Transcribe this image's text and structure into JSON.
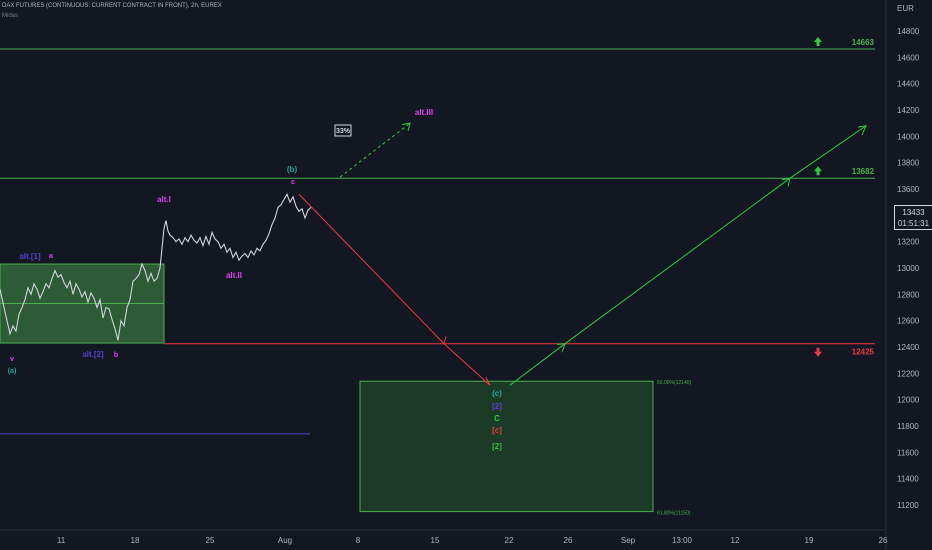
{
  "header": {
    "title": "DAX FUTURES (CONTINUOUS: CURRENT CONTRACT IN FRONT), 2h, EUREX",
    "author": "Midas"
  },
  "colors": {
    "bg": "#131722",
    "green": "#4caf50",
    "bright_green": "#2ecc40",
    "red": "#f23645",
    "magenta": "#e040fb",
    "purple": "#5c3fd1",
    "teal": "#26a69a",
    "white": "#d1d4dc"
  },
  "chart_data": {
    "type": "line",
    "y_axis_label": "EUR",
    "y_ticks": [
      11200,
      11400,
      11600,
      11800,
      12000,
      12200,
      12400,
      12600,
      12800,
      13000,
      13200,
      13400,
      13600,
      13800,
      14000,
      14200,
      14400,
      14600,
      14800
    ],
    "ylim": [
      11080,
      14960
    ],
    "x_ticks": [
      "11",
      "18",
      "25",
      "Aug",
      "8",
      "15",
      "22",
      "26",
      "Sep",
      "13:00",
      "12",
      "19",
      "26"
    ],
    "current_price": "13433",
    "countdown": "01:51:31",
    "levels": [
      {
        "label": "14663",
        "value": 14663,
        "color": "#4caf50",
        "arrow": "up"
      },
      {
        "label": "13682",
        "value": 13682,
        "color": "#4caf50",
        "arrow": "up"
      },
      {
        "label": "12425",
        "value": 12425,
        "color": "#f23645",
        "arrow": "down"
      }
    ],
    "fib_box": {
      "top_label": "50.00%(12140)",
      "bottom_label": "61.80%(11150)",
      "top": 12140,
      "bottom": 11150
    },
    "range_box": {
      "top": 13030,
      "bottom": 12430
    },
    "purple_line": 11740,
    "annotations": [
      {
        "text": "33%",
        "boxed": true
      },
      {
        "text": "alt.III",
        "color": "#e040fb"
      },
      {
        "text": "(b)",
        "color": "#26a69a"
      },
      {
        "text": "c",
        "color": "#e040fb"
      },
      {
        "text": "alt.I",
        "color": "#e040fb"
      },
      {
        "text": "alt.II",
        "color": "#e040fb"
      },
      {
        "text": "alt.[1]",
        "color": "#5c3fd1"
      },
      {
        "text": "a",
        "color": "#e040fb"
      },
      {
        "text": "alt.[2]",
        "color": "#5c3fd1"
      },
      {
        "text": "b",
        "color": "#e040fb"
      },
      {
        "text": "v",
        "color": "#e040fb"
      },
      {
        "text": "(a)",
        "color": "#26a69a"
      },
      {
        "text": "(c)",
        "color": "#26a69a"
      },
      {
        "text": "[2]",
        "color": "#5c3fd1"
      },
      {
        "text": "C",
        "color": "#2ecc40"
      },
      {
        "text": "[c]",
        "color": "#f23645"
      },
      {
        "text": "[2]",
        "color": "#4caf50"
      }
    ]
  }
}
